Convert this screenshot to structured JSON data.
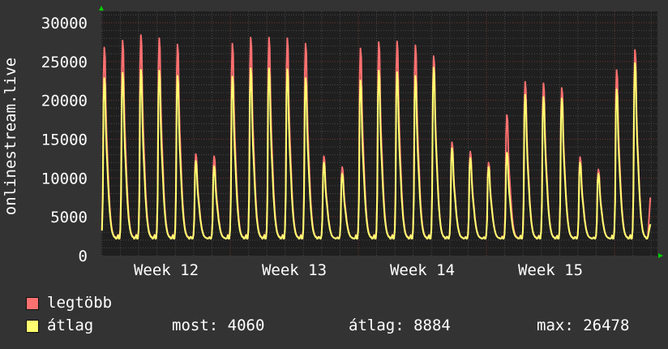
{
  "chart_data": {
    "type": "line",
    "ylabel": "onlinestream.live",
    "xlabel": "",
    "ylim": [
      0,
      30000
    ],
    "yticks": [
      0,
      5000,
      10000,
      15000,
      20000,
      25000,
      30000
    ],
    "xtick_labels": [
      "Week 12",
      "Week 13",
      "Week 14",
      "Week 15"
    ],
    "grid": true,
    "daily_minimum_approx": 2200,
    "series": [
      {
        "name": "legtöbb",
        "color": "#ff7070",
        "daily_peaks": [
          26800,
          27700,
          28400,
          28000,
          27200,
          13100,
          12800,
          27300,
          28100,
          28100,
          28000,
          27300,
          12800,
          11400,
          26700,
          27500,
          27600,
          27100,
          25700,
          14600,
          13400,
          12000,
          18100,
          22400,
          22200,
          21600,
          12700,
          11100,
          23900,
          26500
        ],
        "last": 7500
      },
      {
        "name": "átlag",
        "color": "#ffff70",
        "daily_peaks": [
          23500,
          24200,
          24600,
          24500,
          23800,
          12500,
          11800,
          23700,
          24800,
          24800,
          24700,
          23500,
          12300,
          10800,
          23200,
          24500,
          24300,
          23800,
          24900,
          14200,
          12900,
          11700,
          13600,
          21300,
          21000,
          20800,
          12300,
          10800,
          22000,
          25500
        ],
        "last": 4060
      }
    ]
  },
  "legend": {
    "max_label": "legtöbb",
    "avg_label": "átlag",
    "stat_current": "most: 4060",
    "stat_average": "átlag: 8884",
    "stat_max": "max: 26478"
  }
}
